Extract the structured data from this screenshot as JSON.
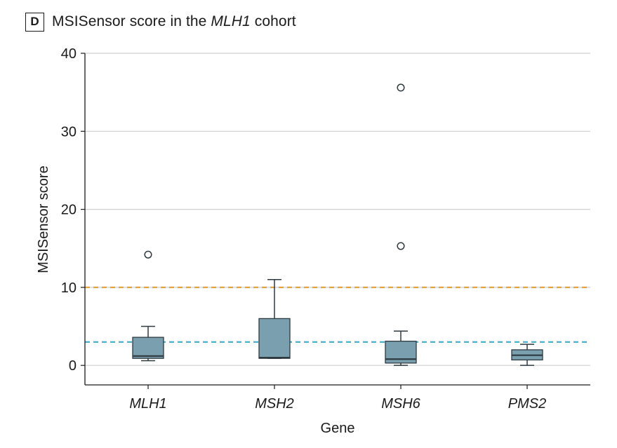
{
  "panel": {
    "letter": "D",
    "title_prefix": "MSISensor score in the ",
    "title_italic": "MLH1",
    "title_suffix": " cohort"
  },
  "chart_data": {
    "type": "box",
    "title": "MSISensor score in the MLH1 cohort",
    "xlabel": "Gene",
    "ylabel": "MSISensor score",
    "ylim": [
      -2.5,
      40
    ],
    "yticks": [
      0,
      10,
      20,
      30,
      40
    ],
    "grid": "horizontal",
    "categories": [
      "MLH1",
      "MSH2",
      "MSH6",
      "PMS2"
    ],
    "boxes": [
      {
        "category": "MLH1",
        "whisker_low": 0.6,
        "q1": 0.9,
        "median": 1.2,
        "q3": 3.6,
        "whisker_high": 5.0,
        "outliers": [
          14.2
        ]
      },
      {
        "category": "MSH2",
        "whisker_low": 0.9,
        "q1": 0.9,
        "median": 1.0,
        "q3": 6.0,
        "whisker_high": 11.0,
        "outliers": []
      },
      {
        "category": "MSH6",
        "whisker_low": 0.0,
        "q1": 0.3,
        "median": 0.8,
        "q3": 3.1,
        "whisker_high": 4.4,
        "outliers": [
          15.3,
          35.6
        ]
      },
      {
        "category": "PMS2",
        "whisker_low": 0.0,
        "q1": 0.7,
        "median": 1.3,
        "q3": 2.0,
        "whisker_high": 2.7,
        "outliers": []
      }
    ],
    "reference_lines": [
      {
        "y": 10,
        "style": "dashed",
        "color": "#e8a33d"
      },
      {
        "y": 3,
        "style": "dashed",
        "color": "#3aaed0"
      }
    ],
    "colors": {
      "box_fill": "#7a9faf",
      "box_stroke": "#2e3a40",
      "grid": "#cfcfcf",
      "axis": "#1a1a1a"
    }
  }
}
